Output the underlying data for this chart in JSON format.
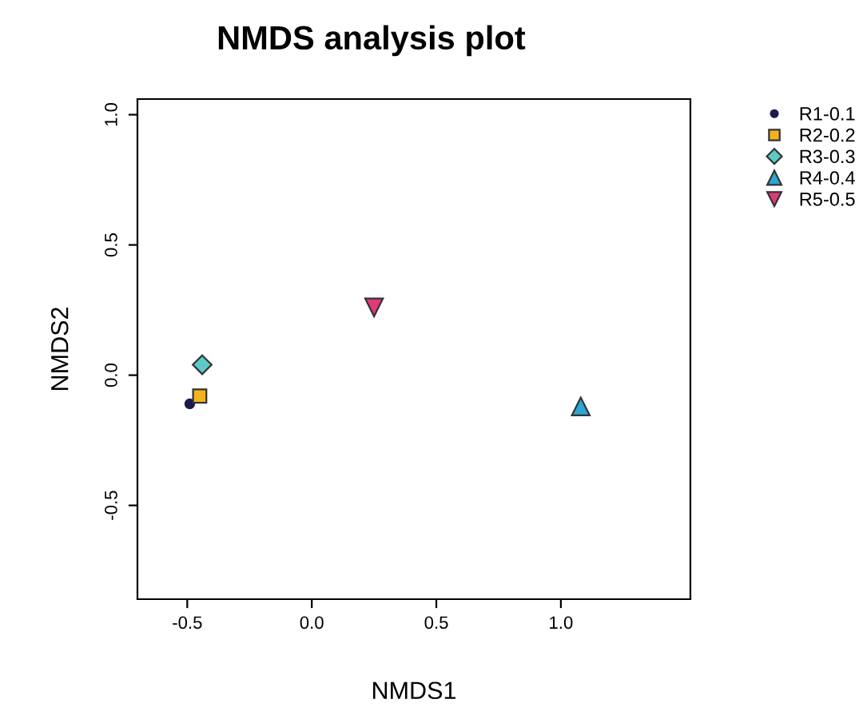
{
  "chart_data": {
    "type": "scatter",
    "title": "NMDS analysis plot",
    "xlabel": "NMDS1",
    "ylabel": "NMDS2",
    "xlim": [
      -0.7,
      1.52
    ],
    "ylim": [
      -0.86,
      1.06
    ],
    "xticks": [
      -0.5,
      {
        "value": 0,
        "label": "0.0"
      },
      0.5,
      {
        "value": 1,
        "label": "1.0"
      }
    ],
    "yticks": [
      -0.5,
      {
        "value": 0,
        "label": "0.0"
      },
      0.5,
      {
        "value": 1,
        "label": "1.0"
      }
    ],
    "grid": false,
    "legend": "top right",
    "series": [
      {
        "name": "R1-0.1",
        "color": "#1c1a4f",
        "marker": "circle",
        "x": [
          -0.49
        ],
        "values": [
          -0.11
        ]
      },
      {
        "name": "R2-0.2",
        "color": "#f5b31a",
        "marker": "square",
        "x": [
          -0.45
        ],
        "values": [
          -0.08
        ]
      },
      {
        "name": "R3-0.3",
        "color": "#5ccbc8",
        "marker": "diamond",
        "x": [
          -0.44
        ],
        "values": [
          0.04
        ]
      },
      {
        "name": "R4-0.4",
        "color": "#2ba6d6",
        "marker": "triangle",
        "x": [
          1.08
        ],
        "values": [
          -0.12
        ]
      },
      {
        "name": "R5-0.5",
        "color": "#e03a7c",
        "marker": "triangle_down",
        "x": [
          0.25
        ],
        "values": [
          0.26
        ]
      }
    ]
  }
}
